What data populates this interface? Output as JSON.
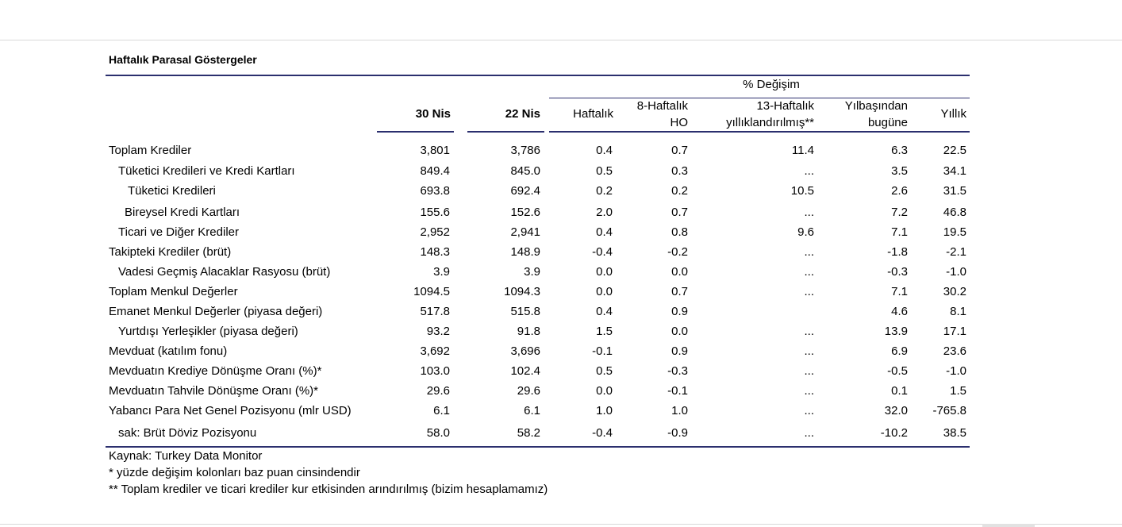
{
  "title": "Haftalık Parasal Göstergeler",
  "change_group_label": "% Değişim",
  "headers": {
    "c1": "30 Nis",
    "c2": "22 Nis",
    "c3": "Haftalık",
    "c4_line1": "8-Haftalık",
    "c4_line2": "HO",
    "c5_line1": "13-Haftalık",
    "c5_line2": "yıllıklandırılmış**",
    "c6_line1": "Yılbaşından",
    "c6_line2": "bugüne",
    "c7": "Yıllık"
  },
  "rows": [
    {
      "label": "Toplam Krediler",
      "indent": 0,
      "v": [
        "3,801",
        "3,786",
        "0.4",
        "0.7",
        "11.4",
        "6.3",
        "22.5"
      ]
    },
    {
      "label": "Tüketici Kredileri ve Kredi Kartları",
      "indent": 1,
      "v": [
        "849.4",
        "845.0",
        "0.5",
        "0.3",
        "...",
        "3.5",
        "34.1"
      ]
    },
    {
      "label": "Tüketici Kredileri",
      "indent": 2,
      "v": [
        "693.8",
        "692.4",
        "0.2",
        "0.2",
        "10.5",
        "2.6",
        "31.5"
      ]
    },
    {
      "label": "Bireysel Kredi Kartları",
      "indent": 2,
      "v": [
        "155.6",
        "152.6",
        "2.0",
        "0.7",
        "...",
        "7.2",
        "46.8"
      ]
    },
    {
      "label": "Ticari ve Diğer Krediler",
      "indent": 1,
      "v": [
        "2,952",
        "2,941",
        "0.4",
        "0.8",
        "9.6",
        "7.1",
        "19.5"
      ]
    },
    {
      "label": "Takipteki Krediler (brüt)",
      "indent": 0,
      "v": [
        "148.3",
        "148.9",
        "-0.4",
        "-0.2",
        "...",
        "-1.8",
        "-2.1"
      ]
    },
    {
      "label": "Vadesi Geçmiş Alacaklar Rasyosu (brüt)",
      "indent": 1,
      "v": [
        "3.9",
        "3.9",
        "0.0",
        "0.0",
        "...",
        "-0.3",
        "-1.0"
      ]
    },
    {
      "label": "Toplam Menkul Değerler",
      "indent": 0,
      "v": [
        "1094.5",
        "1094.3",
        "0.0",
        "0.7",
        "...",
        "7.1",
        "30.2"
      ]
    },
    {
      "label": "Emanet Menkul Değerler (piyasa değeri)",
      "indent": 0,
      "v": [
        "517.8",
        "515.8",
        "0.4",
        "0.9",
        "",
        "4.6",
        "8.1"
      ]
    },
    {
      "label": "Yurtdışı Yerleşikler (piyasa değeri)",
      "indent": 1,
      "v": [
        "93.2",
        "91.8",
        "1.5",
        "0.0",
        "...",
        "13.9",
        "17.1"
      ]
    },
    {
      "label": "Mevduat (katılım fonu)",
      "indent": 0,
      "v": [
        "3,692",
        "3,696",
        "-0.1",
        "0.9",
        "...",
        "6.9",
        "23.6"
      ]
    },
    {
      "label": "Mevduatın Krediye Dönüşme Oranı (%)*",
      "indent": 0,
      "v": [
        "103.0",
        "102.4",
        "0.5",
        "-0.3",
        "...",
        "-0.5",
        "-1.0"
      ]
    },
    {
      "label": "Mevduatın Tahvile Dönüşme Oranı (%)*",
      "indent": 0,
      "v": [
        "29.6",
        "29.6",
        "0.0",
        "-0.1",
        "...",
        "0.1",
        "1.5"
      ]
    },
    {
      "label": "Yabancı Para Net Genel Pozisyonu (mlr USD)",
      "indent": 0,
      "v": [
        "6.1",
        "6.1",
        "1.0",
        "1.0",
        "...",
        "32.0",
        "-765.8"
      ]
    },
    {
      "label": "sak: Brüt Döviz Pozisyonu",
      "indent": 1,
      "v": [
        "58.0",
        "58.2",
        "-0.4",
        "-0.9",
        "...",
        "-10.2",
        "38.5"
      ]
    }
  ],
  "notes": [
    "Kaynak: Turkey Data Monitor",
    "* yüzde değişim kolonları baz puan cinsindendir",
    "** Toplam krediler ve ticari krediler kur etkisinden arındırılmış (bizim hesaplamamız)"
  ]
}
